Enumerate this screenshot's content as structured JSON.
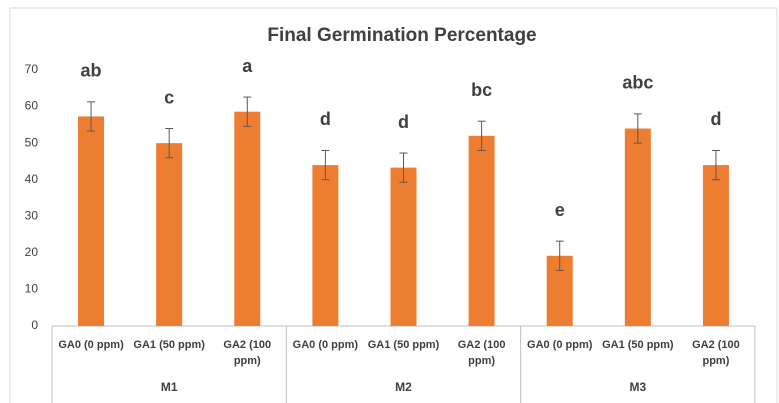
{
  "chart_data": {
    "type": "bar",
    "title": "Final Germination Percentage",
    "categories": [
      "GA0 (0 ppm)",
      "GA1 (50 ppm)",
      "GA2 (100 ppm)",
      "GA0 (0 ppm)",
      "GA1 (50 ppm)",
      "GA2 (100 ppm)",
      "GA0 (0 ppm)",
      "GA1 (50 ppm)",
      "GA2 (100 ppm)"
    ],
    "groups": [
      "M1",
      "M2",
      "M3"
    ],
    "values": [
      57.3,
      50,
      58.6,
      44,
      43.3,
      52,
      19.2,
      54,
      44
    ],
    "errors": [
      4,
      4,
      4,
      4,
      4,
      4,
      4,
      4,
      4
    ],
    "annotations": [
      "ab",
      "c",
      "a",
      "d",
      "d",
      "bc",
      "e",
      "abc",
      "d"
    ],
    "color": "#ed7d31",
    "ylim": [
      0,
      70
    ],
    "yticks": [
      0,
      10,
      20,
      30,
      40,
      50,
      60,
      70
    ],
    "grid": false
  }
}
